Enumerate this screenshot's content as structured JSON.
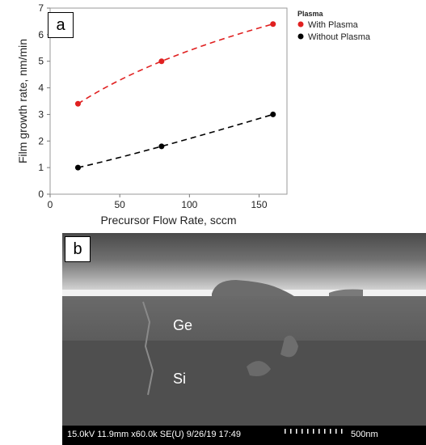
{
  "panel_a": {
    "label": "a",
    "chart_data": {
      "type": "scatter",
      "xlabel": "Precursor Flow Rate, sccm",
      "ylabel": "Film growth rate, nm/min",
      "xlim": [
        0,
        170
      ],
      "ylim": [
        0,
        7
      ],
      "x_ticks": [
        0,
        50,
        100,
        150
      ],
      "y_ticks": [
        0,
        1,
        2,
        3,
        4,
        5,
        6,
        7
      ],
      "grid": false,
      "legend_position": "top-right",
      "legend_title": "Plasma",
      "series": [
        {
          "name": "With Plasma",
          "color": "#e02020",
          "x": [
            20,
            80,
            160
          ],
          "y": [
            3.4,
            5.0,
            6.4
          ],
          "fit": "dashed"
        },
        {
          "name": "Without Plasma",
          "color": "#000000",
          "x": [
            20,
            80,
            160
          ],
          "y": [
            1.0,
            1.8,
            3.0
          ],
          "fit": "dashed"
        }
      ]
    }
  },
  "panel_b": {
    "label": "b",
    "layer_top": "Ge",
    "layer_bottom": "Si",
    "info_text": "15.0kV 11.9mm x60.0k SE(U) 9/26/19 17:49",
    "scale_bar": "500nm"
  }
}
